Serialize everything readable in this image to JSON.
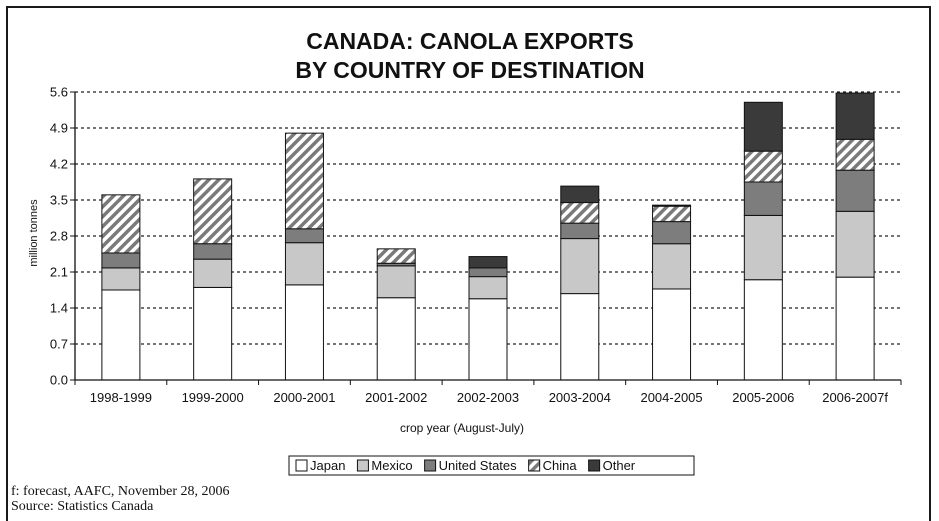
{
  "chart_data": {
    "type": "bar",
    "stacked": true,
    "title_line1": "CANADA: CANOLA EXPORTS",
    "title_line2": "BY COUNTRY OF DESTINATION",
    "xlabel": "crop year (August-July)",
    "ylabel": "million tonnes",
    "ylim": [
      0,
      5.6
    ],
    "yticks": [
      "0.0",
      "0.7",
      "1.4",
      "2.1",
      "2.8",
      "3.5",
      "4.2",
      "4.9",
      "5.6"
    ],
    "grid": "horizontal dotted",
    "legend_position": "bottom",
    "categories": [
      "1998-1999",
      "1999-2000",
      "2000-2001",
      "2001-2002",
      "2002-2003",
      "2003-2004",
      "2004-2005",
      "2005-2006",
      "2006-2007f"
    ],
    "series": [
      {
        "name": "Japan",
        "color": "#ffffff",
        "values": [
          1.75,
          1.8,
          1.85,
          1.6,
          1.58,
          1.68,
          1.77,
          1.95,
          2.0
        ]
      },
      {
        "name": "Mexico",
        "color": "#c8c8c8",
        "values": [
          0.43,
          0.55,
          0.82,
          0.62,
          0.43,
          1.07,
          0.88,
          1.25,
          1.28
        ]
      },
      {
        "name": "United States",
        "color": "#7d7d7d",
        "values": [
          0.29,
          0.3,
          0.27,
          0.05,
          0.17,
          0.3,
          0.43,
          0.65,
          0.8
        ]
      },
      {
        "name": "China",
        "color": "hatched",
        "values": [
          1.13,
          1.26,
          1.86,
          0.28,
          0.0,
          0.4,
          0.3,
          0.6,
          0.6
        ]
      },
      {
        "name": "Other",
        "color": "#3a3a3a",
        "values": [
          0.0,
          0.0,
          0.0,
          0.0,
          0.22,
          0.32,
          0.02,
          0.95,
          0.9
        ]
      }
    ]
  },
  "footnotes": {
    "line1": "f: forecast, AAFC, November 28, 2006",
    "line2": "Source: Statistics Canada"
  }
}
